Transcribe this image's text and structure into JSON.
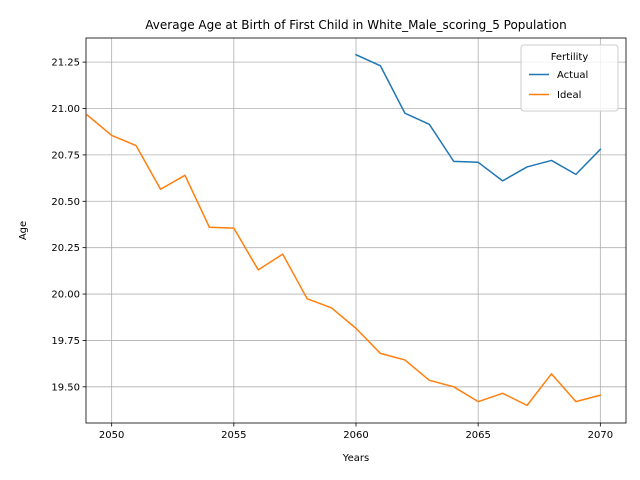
{
  "chart_data": {
    "type": "line",
    "title": "Average Age at Birth of First Child in White_Male_scoring_5 Population",
    "xlabel": "Years",
    "ylabel": "Age",
    "xlim": [
      2048.95,
      2071.05
    ],
    "ylim": [
      19.305,
      21.38
    ],
    "x_ticks": [
      2050,
      2055,
      2060,
      2065,
      2070
    ],
    "y_ticks": [
      19.5,
      19.75,
      20.0,
      20.25,
      20.5,
      20.75,
      21.0,
      21.25
    ],
    "x_tick_labels": [
      "2050",
      "2055",
      "2060",
      "2065",
      "2070"
    ],
    "y_tick_labels": [
      "19.50",
      "19.75",
      "20.00",
      "20.25",
      "20.50",
      "20.75",
      "21.00",
      "21.25"
    ],
    "grid": true,
    "legend": {
      "title": "Fertility",
      "placement": "top-right"
    },
    "series": [
      {
        "name": "Actual",
        "color": "#1f77b4",
        "x": [
          2060,
          2061,
          2062,
          2063,
          2064,
          2065,
          2066,
          2067,
          2068,
          2069,
          2070
        ],
        "values": [
          21.29,
          21.23,
          20.975,
          20.915,
          20.715,
          20.71,
          20.61,
          20.685,
          20.72,
          20.645,
          20.78
        ]
      },
      {
        "name": "Ideal",
        "color": "#ff7f0e",
        "x": [
          2049,
          2050,
          2051,
          2052,
          2053,
          2054,
          2055,
          2056,
          2057,
          2058,
          2059,
          2060,
          2061,
          2062,
          2063,
          2064,
          2065,
          2066,
          2067,
          2068,
          2069,
          2070
        ],
        "values": [
          20.965,
          20.855,
          20.8,
          20.565,
          20.64,
          20.36,
          20.355,
          20.13,
          20.215,
          19.975,
          19.925,
          19.815,
          19.68,
          19.645,
          19.535,
          19.5,
          19.42,
          19.465,
          19.4,
          19.57,
          19.42,
          19.455
        ]
      }
    ]
  }
}
